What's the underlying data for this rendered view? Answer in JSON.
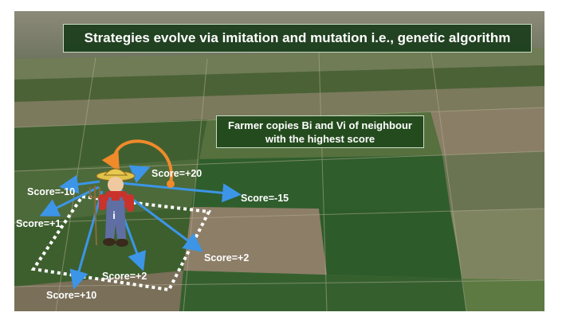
{
  "title_banner": "Strategies evolve via imitation and mutation i.e., genetic algorithm",
  "note_box": {
    "line1": "Farmer copies Bi and Vi of neighbour",
    "line2": "with the highest score"
  },
  "scores": {
    "score_plus20": "Score=+20",
    "score_minus10": "Score=-10",
    "score_minus15": "Score=-15",
    "score_plus1": "Score=+1",
    "score_plus2_right": "Score=+2",
    "score_plus2_bottom": "Score=+2",
    "score_plus10": "Score=+10"
  },
  "farmer_badge": "i",
  "colors": {
    "arrow": "#3c95e6",
    "imitation_arrow": "#f08a2b",
    "plot_border": "#ffffff",
    "banner_bg": "#163a18"
  }
}
